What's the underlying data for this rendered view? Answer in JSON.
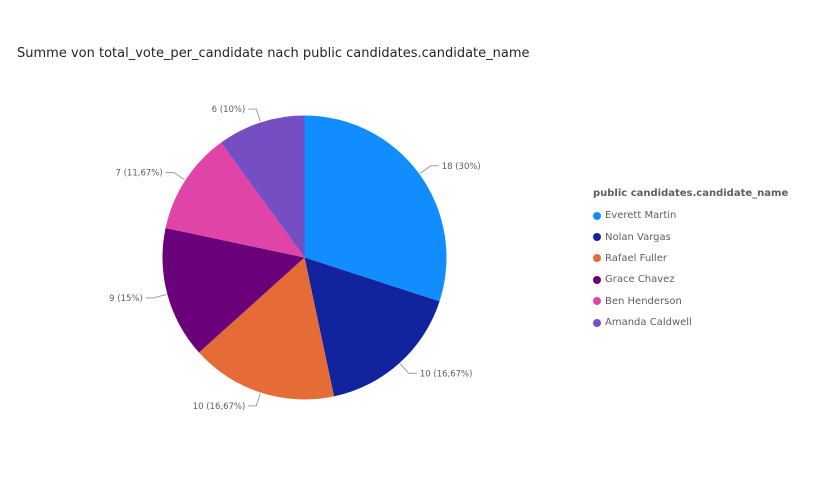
{
  "chart_data": {
    "type": "pie",
    "title": "Summe von total_vote_per_candidate nach public candidates.candidate_name",
    "legend_title": "public candidates.candidate_name",
    "legend_position": "right",
    "slices": [
      {
        "name": "Everett Martin",
        "value": 18,
        "label": "18 (30%)",
        "color": "#118DFF"
      },
      {
        "name": "Nolan Vargas",
        "value": 10,
        "label": "10 (16,67%)",
        "color": "#12239E"
      },
      {
        "name": "Rafael Fuller",
        "value": 10,
        "label": "10 (16,67%)",
        "color": "#E66C37"
      },
      {
        "name": "Grace Chavez",
        "value": 9,
        "label": "9 (15%)",
        "color": "#6B007B"
      },
      {
        "name": "Ben Henderson",
        "value": 7,
        "label": "7 (11,67%)",
        "color": "#E044A7"
      },
      {
        "name": "Amanda Caldwell",
        "value": 6,
        "label": "6 (10%)",
        "color": "#744EC2"
      }
    ]
  }
}
